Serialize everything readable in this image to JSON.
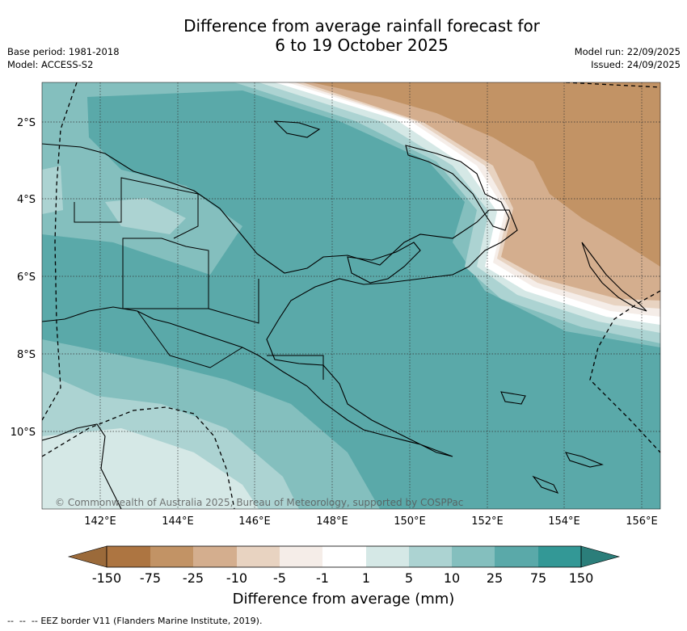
{
  "title_line1": "Difference from average rainfall forecast for",
  "title_line2": "6 to 19 October 2025",
  "base_period": "Base period: 1981-2018",
  "model": "Model: ACCESS-S2",
  "model_run": "Model run: 22/09/2025",
  "issued": "Issued: 24/09/2025",
  "copyright": "© Commonwealth of Australia 2025, Bureau of Meteorology, supported by COSPPac",
  "lat_ticks": [
    "2°S",
    "4°S",
    "6°S",
    "8°S",
    "10°S"
  ],
  "lon_ticks": [
    "142°E",
    "144°E",
    "146°E",
    "148°E",
    "150°E",
    "152°E",
    "154°E",
    "156°E"
  ],
  "colorbar": {
    "labels": [
      "-150",
      "-75",
      "-25",
      "-10",
      "-5",
      "-1",
      "1",
      "5",
      "10",
      "25",
      "75",
      "150"
    ],
    "colors": [
      "#9b6a3a",
      "#ad7541",
      "#c29365",
      "#d4ae8e",
      "#e8d3c1",
      "#f5ede8",
      "#ffffff",
      "#d5e8e6",
      "#acd3d2",
      "#84bfbe",
      "#5aa9a9",
      "#339896",
      "#2b7e7a"
    ],
    "title": "Difference from average (mm)"
  },
  "legend_line": "EEZ border V11 (Flanders Marine Institute, 2019).",
  "colors": {
    "dry_strong": "#c29365",
    "dry_mod": "#d4ae8e",
    "wet_light": "#d5e8e6",
    "wet_mod": "#84bfbe",
    "wet_strong": "#5aa9a9"
  }
}
